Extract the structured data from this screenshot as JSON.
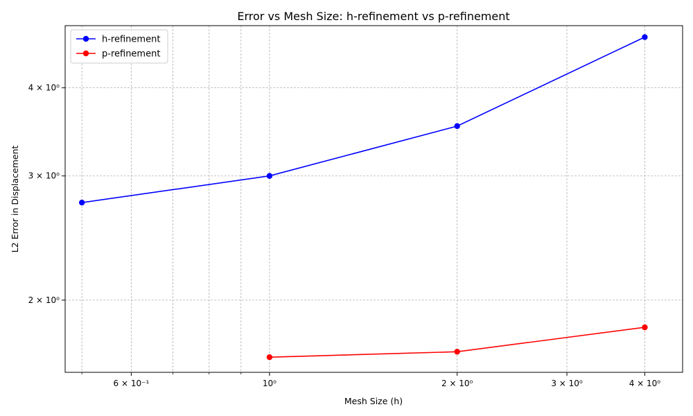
{
  "chart_data": {
    "type": "line",
    "title": "Error vs Mesh Size: h-refinement vs p-refinement",
    "xlabel": "Mesh Size (h)",
    "ylabel": "L2 Error in Displacement",
    "x_scale": "log",
    "y_scale": "log",
    "xlim": [
      0.47,
      4.6
    ],
    "ylim": [
      1.58,
      4.9
    ],
    "grid": true,
    "legend_position": "top-left",
    "x_ticks": [
      {
        "value": 0.6,
        "label": "6 × 10⁻¹"
      },
      {
        "value": 1,
        "label": "10⁰"
      },
      {
        "value": 2,
        "label": "2 × 10⁰"
      },
      {
        "value": 3,
        "label": "3 × 10⁰"
      },
      {
        "value": 4,
        "label": "4 × 10⁰"
      }
    ],
    "x_minor_ticks": [
      0.5,
      0.7,
      0.8,
      0.9
    ],
    "y_ticks": [
      {
        "value": 2,
        "label": "2 × 10⁰"
      },
      {
        "value": 3,
        "label": "3 × 10⁰"
      },
      {
        "value": 4,
        "label": "4 × 10⁰"
      }
    ],
    "series": [
      {
        "name": "h-refinement",
        "color": "#0000ff",
        "x": [
          0.5,
          1,
          2,
          4
        ],
        "y": [
          2.75,
          3.0,
          3.53,
          4.72
        ]
      },
      {
        "name": "p-refinement",
        "color": "#ff0000",
        "x": [
          1,
          2,
          4
        ],
        "y": [
          1.66,
          1.69,
          1.83
        ]
      }
    ]
  }
}
